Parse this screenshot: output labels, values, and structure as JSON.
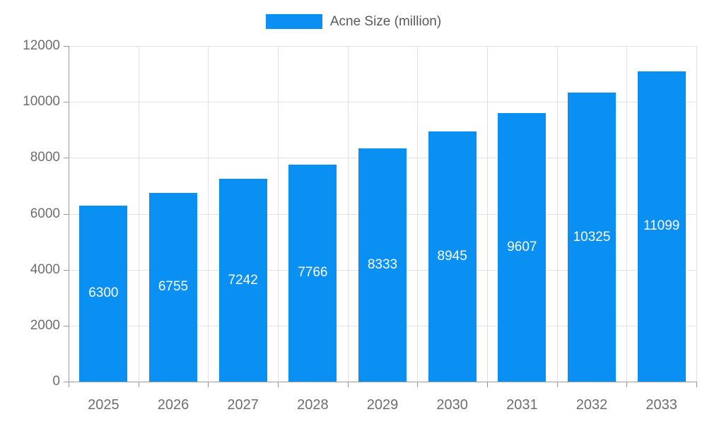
{
  "chart_data": {
    "type": "bar",
    "title": "",
    "legend": [
      {
        "label": "Acne Size (million)",
        "color": "#0a8ff2"
      }
    ],
    "legend_position": "top-center",
    "categories": [
      "2025",
      "2026",
      "2027",
      "2028",
      "2029",
      "2030",
      "2031",
      "2032",
      "2033"
    ],
    "series": [
      {
        "name": "Acne Size (million)",
        "values": [
          6300,
          6755,
          7242,
          7766,
          8333,
          8945,
          9607,
          10325,
          11099
        ],
        "color": "#0a8ff2"
      }
    ],
    "data_labels": {
      "visible": true,
      "position": "inside-center",
      "color": "#ffffff"
    },
    "xlabel": "",
    "ylabel": "",
    "ylim": [
      0,
      12000
    ],
    "ytick_step": 2000,
    "ytick_labels": [
      "0",
      "2000",
      "4000",
      "6000",
      "8000",
      "10000",
      "12000"
    ],
    "grid": "both",
    "colors": {
      "bar": "#0a8ff2",
      "grid": "#e2e2e2",
      "axis": "#9a9a9a",
      "tick_text": "#6e6e6e",
      "legend_text": "#595959",
      "background": "#ffffff"
    }
  }
}
